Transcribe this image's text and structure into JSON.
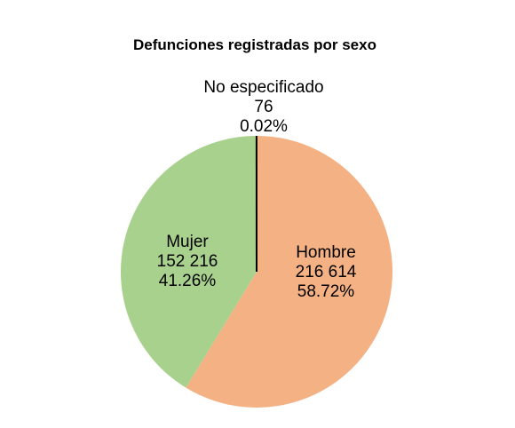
{
  "chart_data": {
    "type": "pie",
    "title": "Defunciones registradas por sexo",
    "legend": "none",
    "slices": [
      {
        "label": "Hombre",
        "value": 216614,
        "value_label": "216 614",
        "percent_label": "58.72%",
        "color": "#f4b183"
      },
      {
        "label": "Mujer",
        "value": 152216,
        "value_label": "152 216",
        "percent_label": "41.26%",
        "color": "#a9d18e"
      },
      {
        "label": "No especificado",
        "value": 76,
        "value_label": "76",
        "percent_label": "0.02%",
        "color": "#000000"
      }
    ]
  }
}
